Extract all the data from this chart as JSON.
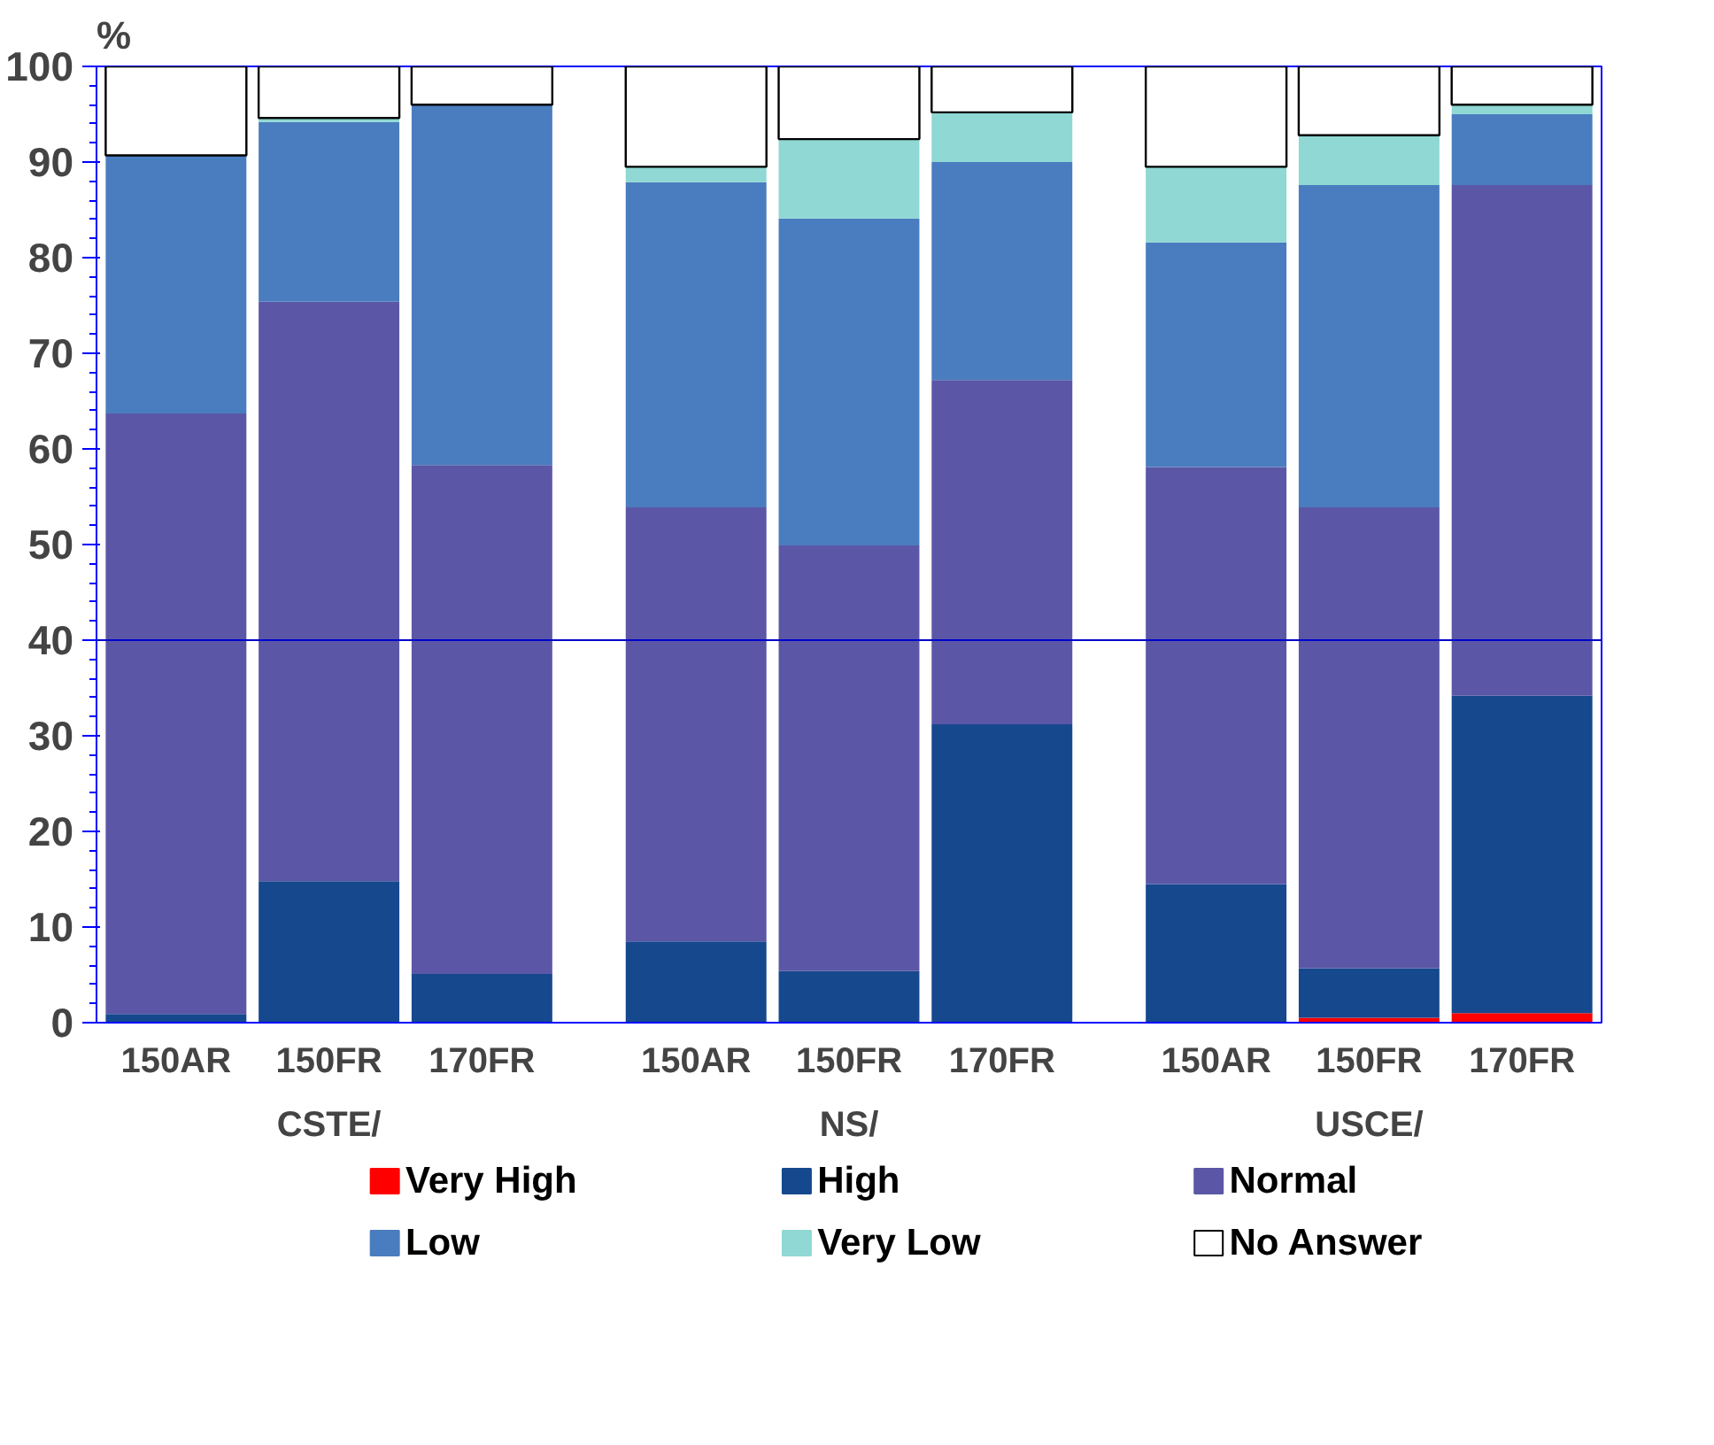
{
  "chart_data": {
    "type": "bar",
    "stacked": true,
    "ylabel": "%",
    "categories": [
      "150AR",
      "150FR",
      "170FR",
      "150AR",
      "150FR",
      "170FR",
      "150AR",
      "150FR",
      "170FR"
    ],
    "annotations": [
      "CSTE/",
      "NS/",
      "USCE/"
    ],
    "series": [
      {
        "name": "Very High",
        "color": "#ff0000",
        "values": [
          0,
          0,
          0,
          0,
          0,
          0,
          0,
          0.5,
          1.0
        ]
      },
      {
        "name": "High",
        "color": "#16488e",
        "values": [
          0.9,
          14.8,
          5.1,
          8.5,
          5.4,
          31.2,
          14.5,
          5.2,
          33.2
        ]
      },
      {
        "name": "Normal",
        "color": "#5b57a6",
        "values": [
          62.8,
          60.6,
          53.2,
          45.4,
          44.5,
          36.0,
          43.6,
          48.2,
          53.4
        ]
      },
      {
        "name": "Low",
        "color": "#4a7dbf",
        "values": [
          27.0,
          18.8,
          37.7,
          34.0,
          34.2,
          22.8,
          23.5,
          33.7,
          7.4
        ]
      },
      {
        "name": "Very Low",
        "color": "#8fd8d4",
        "values": [
          0,
          0.4,
          0,
          1.6,
          8.3,
          5.2,
          7.9,
          5.2,
          1.0
        ]
      },
      {
        "name": "No Answer",
        "color": "#ffffff",
        "values": [
          9.3,
          5.4,
          4.0,
          10.5,
          7.6,
          4.8,
          10.5,
          7.2,
          4.0
        ]
      }
    ],
    "ylim": [
      0,
      100
    ],
    "yticks": [
      0,
      10,
      20,
      30,
      40,
      50,
      60,
      70,
      80,
      90,
      100
    ],
    "ref_lines": [
      {
        "axis": "y",
        "value": 40,
        "color": "#0000cc"
      }
    ],
    "legend": "bottom"
  }
}
